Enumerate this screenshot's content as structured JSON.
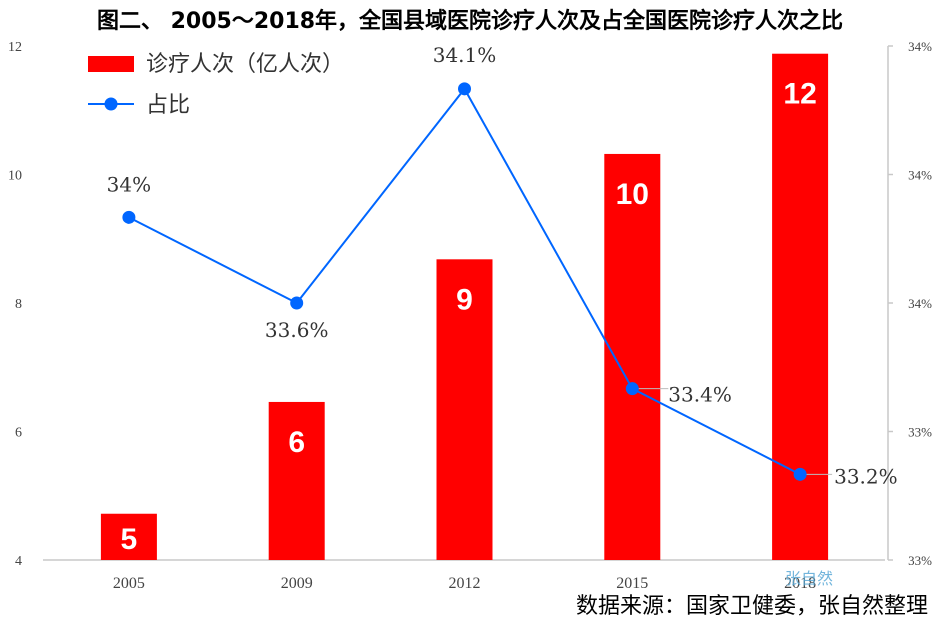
{
  "chart_data": {
    "type": "bar+line",
    "title": "图二、 2005～2018年，全国县域医院诊疗人次及占全国医院诊疗人次之比",
    "categories": [
      "2005",
      "2009",
      "2012",
      "2015",
      "2018"
    ],
    "series": [
      {
        "name": "诊疗人次（亿人次）",
        "type": "bar",
        "axis": "left",
        "color": "#ff0000",
        "values": [
          4.72,
          6.46,
          8.68,
          10.32,
          11.88
        ],
        "labels": [
          "5",
          "6",
          "9",
          "10",
          "12"
        ]
      },
      {
        "name": "占比",
        "type": "line",
        "axis": "right",
        "color": "#0066ff",
        "values": [
          33.8,
          33.6,
          34.1,
          33.4,
          33.2
        ],
        "labels": [
          "34%",
          "33.6%",
          "34.1%",
          "33.4%",
          "33.2%"
        ]
      }
    ],
    "y_left": {
      "min": 4,
      "max": 12,
      "ticks": [
        "4",
        "6",
        "8",
        "10",
        "12"
      ]
    },
    "y_right": {
      "min": 33.0,
      "max": 34.2,
      "ticks": [
        "33%",
        "33%",
        "34%",
        "34%",
        "34%"
      ]
    },
    "grid": false,
    "legend_position": "top-left"
  },
  "watermark_text": "张自然",
  "source_text": "数据来源：国家卫健委，张自然整理"
}
